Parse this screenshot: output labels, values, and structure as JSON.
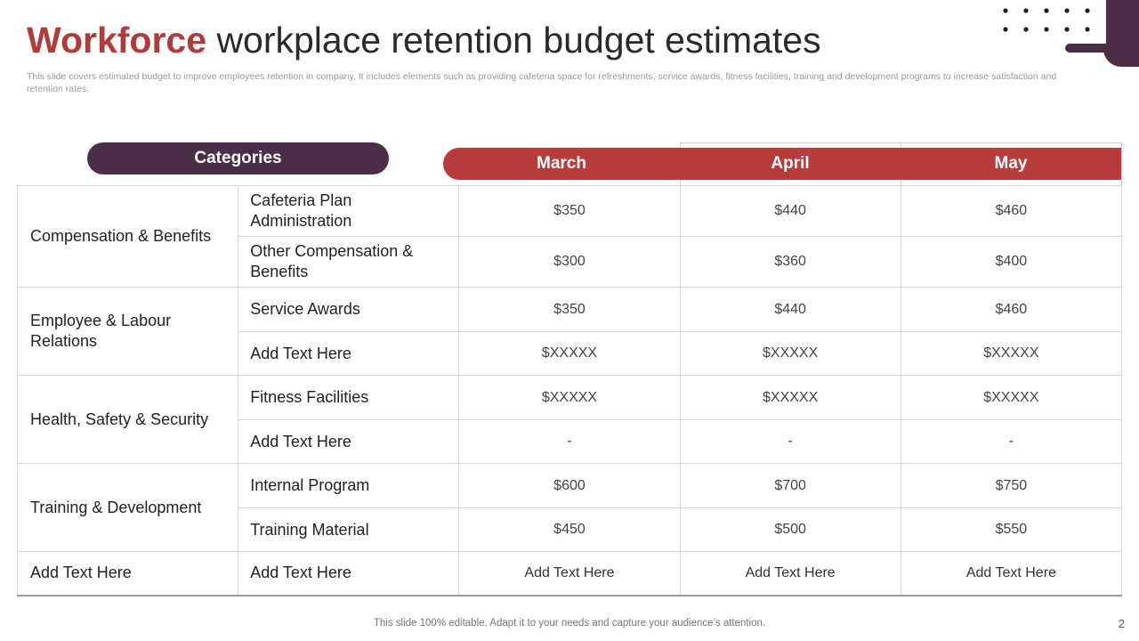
{
  "title": {
    "accent": "Workforce",
    "rest": "workplace retention budget estimates"
  },
  "subtitle": "This slide covers estimated budget to improve employees retention in company. It includes elements such as providing cafeteria space for refreshments, service awards, fitness facilities, training and development programs to increase satisfaction and retention rates.",
  "header": {
    "categories_label": "Categories",
    "months": [
      "March",
      "April",
      "May"
    ]
  },
  "groups": [
    {
      "category": "Compensation & Benefits",
      "items": [
        {
          "name": "Cafeteria Plan Administration",
          "values": [
            "$350",
            "$440",
            "$460"
          ]
        },
        {
          "name": "Other Compensation & Benefits",
          "values": [
            "$300",
            "$360",
            "$400"
          ]
        }
      ]
    },
    {
      "category": "Employee & Labour Relations",
      "items": [
        {
          "name": "Service Awards",
          "values": [
            "$350",
            "$440",
            "$460"
          ]
        },
        {
          "name": "Add Text Here",
          "values": [
            "$XXXXX",
            "$XXXXX",
            "$XXXXX"
          ]
        }
      ]
    },
    {
      "category": "Health, Safety & Security",
      "items": [
        {
          "name": "Fitness Facilities",
          "values": [
            "$XXXXX",
            "$XXXXX",
            "$XXXXX"
          ]
        },
        {
          "name": "Add Text Here",
          "values": [
            "-",
            "-",
            "-"
          ]
        }
      ]
    },
    {
      "category": "Training & Development",
      "items": [
        {
          "name": "Internal Program",
          "values": [
            "$600",
            "$700",
            "$750"
          ]
        },
        {
          "name": "Training Material",
          "values": [
            "$450",
            "$500",
            "$550"
          ]
        }
      ]
    },
    {
      "category": "Add Text Here",
      "items": [
        {
          "name": "Add Text Here",
          "values": [
            "Add Text Here",
            "Add Text Here",
            "Add Text Here"
          ]
        }
      ]
    }
  ],
  "footer": "This slide 100% editable. Adapt it to your needs and capture your audience’s attention.",
  "page_number": "2",
  "colors": {
    "accent": "#b83c3c",
    "plum": "#4a2d47"
  }
}
